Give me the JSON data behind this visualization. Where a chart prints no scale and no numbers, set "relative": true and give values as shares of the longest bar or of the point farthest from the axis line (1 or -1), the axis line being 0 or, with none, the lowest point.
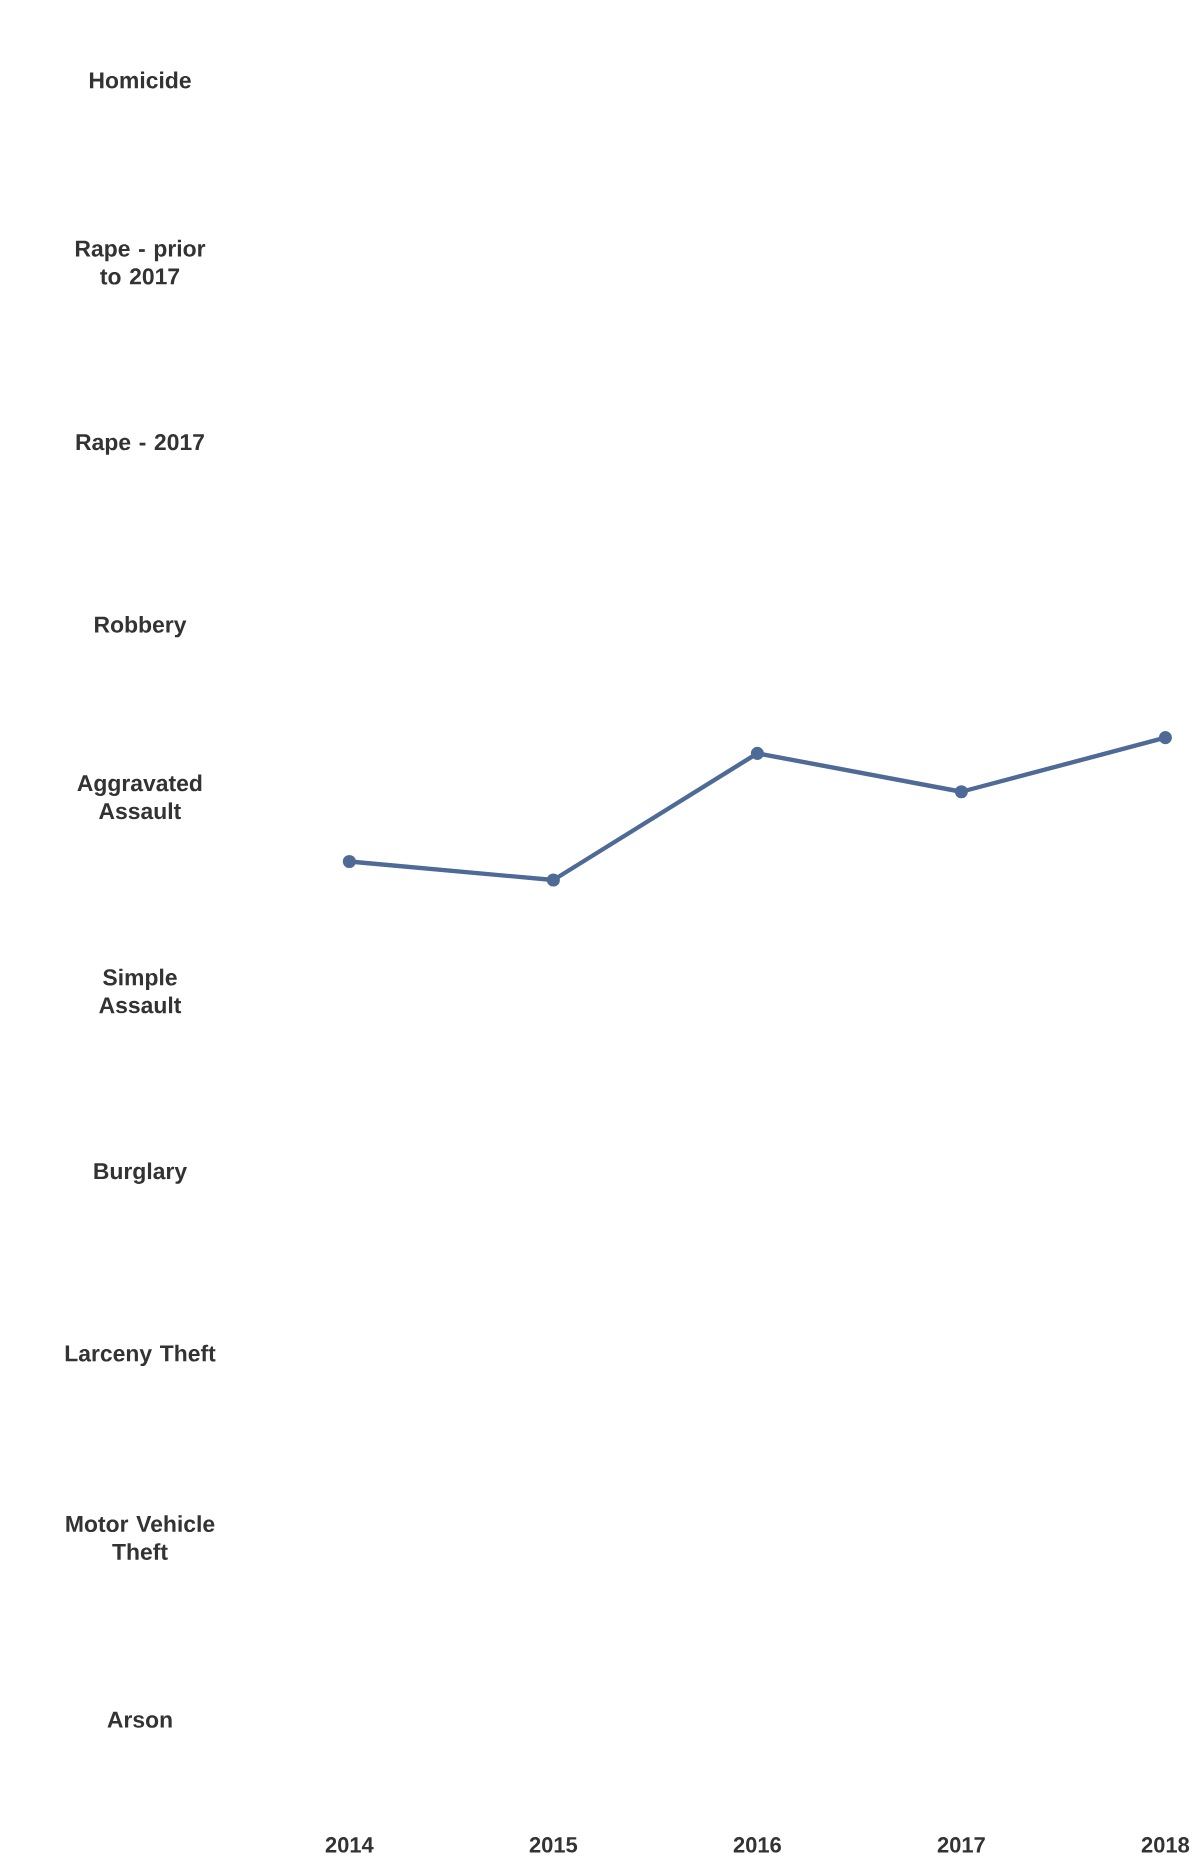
{
  "chart_data": [
    {
      "type": "other",
      "title": "Homicide"
    },
    {
      "type": "other",
      "title": "Rape - prior to 2017"
    },
    {
      "type": "other",
      "title": "Rape - 2017"
    },
    {
      "type": "other",
      "title": "Robbery"
    },
    {
      "type": "line",
      "title": "Aggravated Assault",
      "categories": [
        "2014",
        "2015",
        "2016",
        "2017",
        "2018"
      ],
      "relative": true,
      "color": "#4e6a96",
      "marker": "circle",
      "values": [
        0.13,
        0,
        0.89,
        0.62,
        1
      ]
    },
    {
      "type": "other",
      "title": "Simple Assault"
    },
    {
      "type": "other",
      "title": "Burglary"
    },
    {
      "type": "other",
      "title": "Larceny Theft"
    },
    {
      "type": "other",
      "title": "Motor Vehicle Theft"
    },
    {
      "type": "other",
      "title": "Arson"
    }
  ]
}
